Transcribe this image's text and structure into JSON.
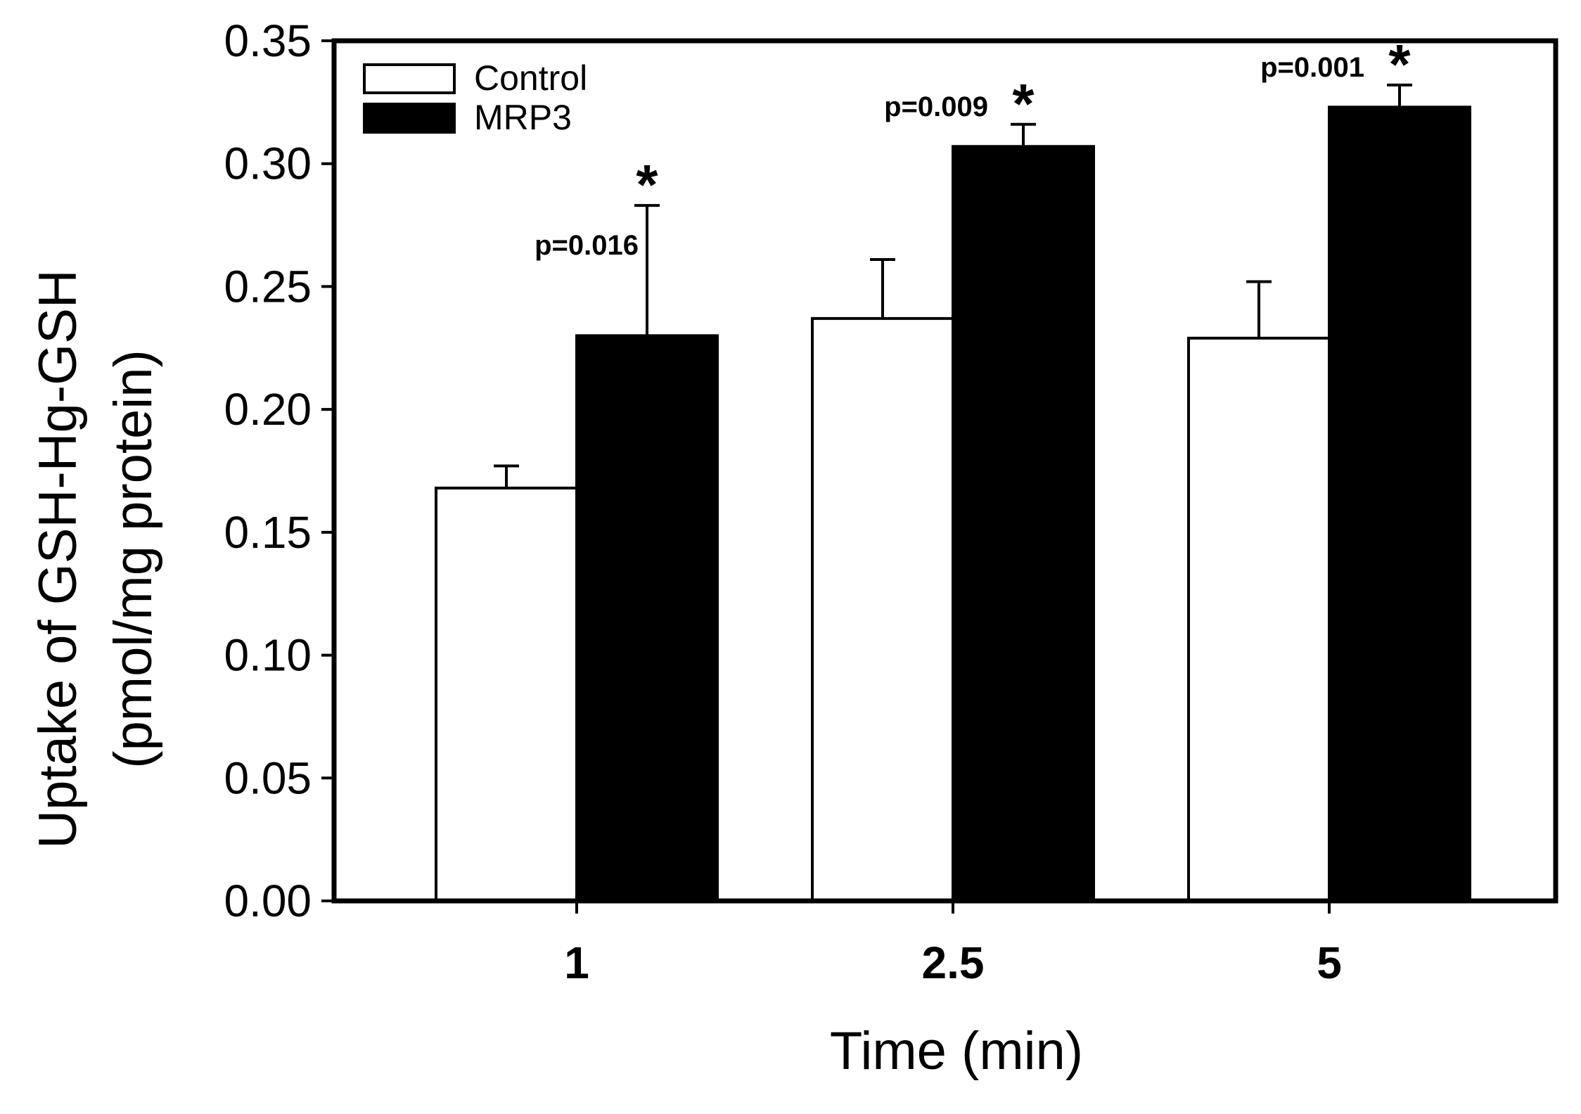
{
  "chart_data": {
    "type": "bar",
    "title": "",
    "xlabel": "Time (min)",
    "ylabel_line1": "Uptake of GSH-Hg-GSH",
    "ylabel_line2": "(pmol/mg protein)",
    "categories": [
      "1",
      "2.5",
      "5"
    ],
    "ylim": [
      0,
      0.35
    ],
    "yticks": [
      0.0,
      0.05,
      0.1,
      0.15,
      0.2,
      0.25,
      0.3,
      0.35
    ],
    "ytick_labels": [
      "0.00",
      "0.05",
      "0.10",
      "0.15",
      "0.20",
      "0.25",
      "0.30",
      "0.35"
    ],
    "legend_position": "top-left",
    "series": [
      {
        "name": "Control",
        "color": "#ffffff",
        "edge_color": "#000000",
        "values": [
          0.168,
          0.237,
          0.229
        ],
        "errors": [
          0.009,
          0.024,
          0.023
        ]
      },
      {
        "name": "MRP3",
        "color": "#000000",
        "edge_color": "#000000",
        "values": [
          0.23,
          0.307,
          0.323
        ],
        "errors": [
          0.053,
          0.009,
          0.009
        ]
      }
    ],
    "annotations": [
      {
        "category": "1",
        "series": "MRP3",
        "pvalue": "p=0.016",
        "marker": "*"
      },
      {
        "category": "2.5",
        "series": "MRP3",
        "pvalue": "p=0.009",
        "marker": "*"
      },
      {
        "category": "5",
        "series": "MRP3",
        "pvalue": "p=0.001",
        "marker": "*"
      }
    ]
  }
}
